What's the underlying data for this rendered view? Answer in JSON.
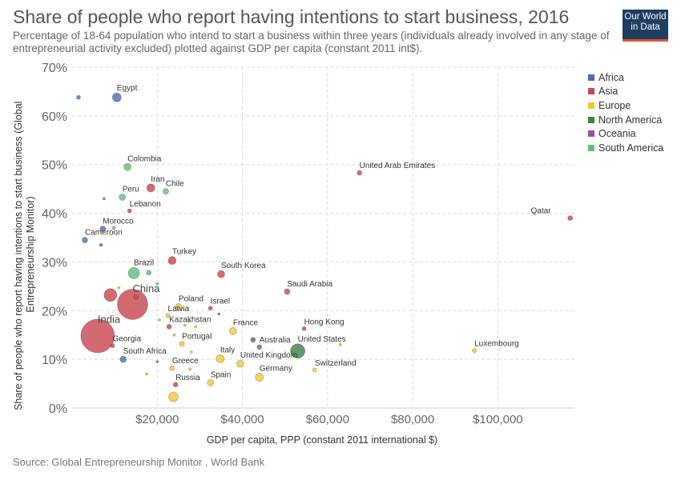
{
  "header": {
    "title": "Share of people who report having intentions to start business, 2016",
    "subtitle": "Percentage of 18-64 population who intend to start a business within three years (individuals already involved in any stage of entrepreneurial activity excluded) plotted against GDP per capita (constant 2011 int$).",
    "logo_line1": "Our World",
    "logo_line2": "in Data"
  },
  "footer": {
    "source": "Source: Global Entrepreneurship Monitor , World Bank"
  },
  "colors": {
    "Africa": "#4c6eb8",
    "Asia": "#c9454e",
    "Europe": "#f2c830",
    "North America": "#3d7f44",
    "Oceania": "#9b4fa8",
    "South America": "#5fbf77"
  },
  "chart_data": {
    "type": "scatter",
    "title": "Share of people who report having intentions to start business, 2016",
    "xlabel": "GDP per capita, PPP (constant 2011 international $)",
    "ylabel": "Share of people who report having intentions to start business (Global Entrepreneurship Monitor)",
    "xlim": [
      0,
      118000
    ],
    "ylim": [
      0,
      70
    ],
    "x_ticks": [
      20000,
      40000,
      60000,
      80000,
      100000
    ],
    "x_tick_labels": [
      "$20,000",
      "$40,000",
      "$60,000",
      "$80,000",
      "$100,000"
    ],
    "y_ticks": [
      0,
      10,
      20,
      30,
      40,
      50,
      60,
      70
    ],
    "y_tick_labels": [
      "0%",
      "10%",
      "20%",
      "30%",
      "40%",
      "50%",
      "60%",
      "70%"
    ],
    "grid": true,
    "legend_position": "right",
    "legend": [
      "Africa",
      "Asia",
      "Europe",
      "North America",
      "Oceania",
      "South America"
    ],
    "points": [
      {
        "label": "Egypt",
        "x": 10500,
        "y": 63.8,
        "group": "Africa",
        "r": 5.5
      },
      {
        "label": "",
        "x": 1500,
        "y": 63.8,
        "group": "Africa",
        "r": 2.5
      },
      {
        "label": "Colombia",
        "x": 13000,
        "y": 49.5,
        "group": "South America",
        "r": 4.5
      },
      {
        "label": "Iran",
        "x": 18500,
        "y": 45.2,
        "group": "Asia",
        "r": 5
      },
      {
        "label": "Chile",
        "x": 22000,
        "y": 44.5,
        "group": "South America",
        "r": 3.5
      },
      {
        "label": "Peru",
        "x": 11800,
        "y": 43.3,
        "group": "South America",
        "r": 4
      },
      {
        "label": "",
        "x": 7500,
        "y": 43,
        "group": "Africa",
        "r": 1.5
      },
      {
        "label": "Lebanon",
        "x": 13500,
        "y": 40.5,
        "group": "Asia",
        "r": 2.5
      },
      {
        "label": "Morocco",
        "x": 7200,
        "y": 36.8,
        "group": "Africa",
        "r": 3.5
      },
      {
        "label": "",
        "x": 9800,
        "y": 37,
        "group": "South America",
        "r": 2
      },
      {
        "label": "Cameroon",
        "x": 3000,
        "y": 34.5,
        "group": "Africa",
        "r": 3.5
      },
      {
        "label": "",
        "x": 6800,
        "y": 33.5,
        "group": "Africa",
        "r": 2
      },
      {
        "label": "United Arab Emirates",
        "x": 67500,
        "y": 48.3,
        "group": "Asia",
        "r": 3
      },
      {
        "label": "Qatar",
        "x": 117000,
        "y": 39,
        "group": "Asia",
        "r": 3
      },
      {
        "label": "Turkey",
        "x": 23500,
        "y": 30.3,
        "group": "Asia",
        "r": 5
      },
      {
        "label": "Brazil",
        "x": 14500,
        "y": 27.7,
        "group": "South America",
        "r": 7
      },
      {
        "label": "",
        "x": 18000,
        "y": 27.8,
        "group": "South America",
        "r": 3
      },
      {
        "label": "South Korea",
        "x": 35000,
        "y": 27.5,
        "group": "Asia",
        "r": 4.5
      },
      {
        "label": "",
        "x": 20000,
        "y": 25.5,
        "group": "South America",
        "r": 1.5
      },
      {
        "label": "",
        "x": 11000,
        "y": 24.7,
        "group": "Europe",
        "r": 1.5
      },
      {
        "label": "Saudi Arabia",
        "x": 50500,
        "y": 23.9,
        "group": "Asia",
        "r": 3.5
      },
      {
        "label": "",
        "x": 9000,
        "y": 23.2,
        "group": "Asia",
        "r": 8
      },
      {
        "label": "China",
        "x": 14200,
        "y": 21.3,
        "group": "Asia",
        "r": 19
      },
      {
        "label": "",
        "x": 15000,
        "y": 22.8,
        "group": "Asia",
        "r": 3
      },
      {
        "label": "Poland",
        "x": 25000,
        "y": 20.8,
        "group": "Europe",
        "r": 4
      },
      {
        "label": "Israel",
        "x": 32500,
        "y": 20.5,
        "group": "Asia",
        "r": 2.5
      },
      {
        "label": "",
        "x": 34500,
        "y": 19.3,
        "group": "North America",
        "r": 1.5
      },
      {
        "label": "Latvia",
        "x": 22500,
        "y": 19,
        "group": "Europe",
        "r": 2.5
      },
      {
        "label": "",
        "x": 20500,
        "y": 18.1,
        "group": "Europe",
        "r": 1.5
      },
      {
        "label": "Kazakhstan",
        "x": 22800,
        "y": 16.7,
        "group": "Asia",
        "r": 3
      },
      {
        "label": "",
        "x": 26500,
        "y": 17,
        "group": "Europe",
        "r": 1.5
      },
      {
        "label": "",
        "x": 29000,
        "y": 16.7,
        "group": "Europe",
        "r": 1.5
      },
      {
        "label": "",
        "x": 27500,
        "y": 17.8,
        "group": "Europe",
        "r": 1.5
      },
      {
        "label": "",
        "x": 24000,
        "y": 15,
        "group": "Europe",
        "r": 1.5
      },
      {
        "label": "France",
        "x": 37800,
        "y": 15.8,
        "group": "Europe",
        "r": 4.5
      },
      {
        "label": "Hong Kong",
        "x": 54500,
        "y": 16.3,
        "group": "Asia",
        "r": 2.5
      },
      {
        "label": "India",
        "x": 6000,
        "y": 14.8,
        "group": "Asia",
        "r": 21
      },
      {
        "label": "Portugal",
        "x": 25800,
        "y": 13.2,
        "group": "Europe",
        "r": 3
      },
      {
        "label": "Australia",
        "x": 44000,
        "y": 12.5,
        "group": "Oceania",
        "r": 3
      },
      {
        "label": "",
        "x": 42500,
        "y": 14,
        "group": "North America",
        "r": 3
      },
      {
        "label": "United States",
        "x": 53000,
        "y": 11.7,
        "group": "North America",
        "r": 9
      },
      {
        "label": "",
        "x": 63000,
        "y": 13,
        "group": "Europe",
        "r": 1.5
      },
      {
        "label": "Georgia",
        "x": 9500,
        "y": 12.8,
        "group": "Asia",
        "r": 2.5
      },
      {
        "label": "",
        "x": 28000,
        "y": 11.5,
        "group": "Europe",
        "r": 1.5
      },
      {
        "label": "Luxembourg",
        "x": 94500,
        "y": 11.8,
        "group": "Europe",
        "r": 2.5
      },
      {
        "label": "South Africa",
        "x": 12000,
        "y": 10,
        "group": "Africa",
        "r": 4
      },
      {
        "label": "Italy",
        "x": 34800,
        "y": 10.1,
        "group": "Europe",
        "r": 5
      },
      {
        "label": "United Kingdom",
        "x": 39500,
        "y": 9.1,
        "group": "Europe",
        "r": 4.5
      },
      {
        "label": "",
        "x": 20000,
        "y": 9.5,
        "group": "Africa",
        "r": 1.5
      },
      {
        "label": "Greece",
        "x": 23500,
        "y": 8.2,
        "group": "Europe",
        "r": 3
      },
      {
        "label": "",
        "x": 27700,
        "y": 8,
        "group": "Europe",
        "r": 1.5
      },
      {
        "label": "Switzerland",
        "x": 57000,
        "y": 7.8,
        "group": "Europe",
        "r": 2.5
      },
      {
        "label": "",
        "x": 17500,
        "y": 7,
        "group": "Europe",
        "r": 1.5
      },
      {
        "label": "Germany",
        "x": 44000,
        "y": 6.3,
        "group": "Europe",
        "r": 5
      },
      {
        "label": "Spain",
        "x": 32500,
        "y": 5.2,
        "group": "Europe",
        "r": 4
      },
      {
        "label": "Russia",
        "x": 24300,
        "y": 4.8,
        "group": "Asia",
        "r": 3
      },
      {
        "label": "",
        "x": 23800,
        "y": 2.3,
        "group": "Europe",
        "r": 6
      }
    ]
  }
}
